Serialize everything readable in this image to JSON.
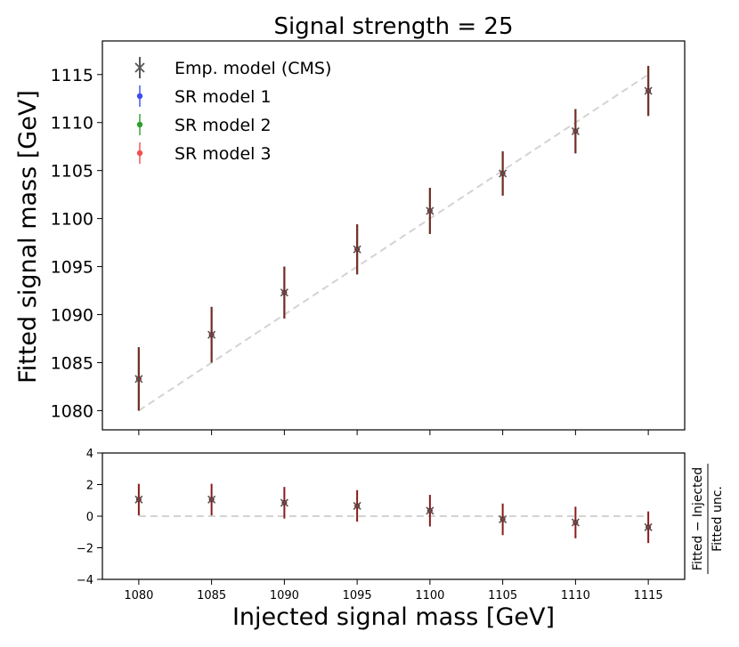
{
  "chart_data": [
    {
      "type": "scatter",
      "title": "Signal strength = 25",
      "ylabel": "Fitted signal mass [GeV]",
      "xlim": [
        1077.5,
        1117.5
      ],
      "ylim": [
        1078,
        1118.5
      ],
      "yticks": [
        1080,
        1085,
        1090,
        1095,
        1100,
        1105,
        1110,
        1115
      ],
      "legend_position": "top-left",
      "reference_line": {
        "style": "dashed",
        "color": "#d3d3d3",
        "x": [
          1080,
          1115
        ],
        "y": [
          1080,
          1115
        ]
      },
      "x": [
        1080,
        1085,
        1090,
        1095,
        1100,
        1105,
        1110,
        1115
      ],
      "series": [
        {
          "name": "Emp. model (CMS)",
          "marker": "x",
          "color": "#555555",
          "values": [
            1083.3,
            1087.9,
            1092.3,
            1096.8,
            1100.8,
            1104.7,
            1109.1,
            1113.3
          ],
          "err": [
            3.3,
            2.9,
            2.7,
            2.6,
            2.4,
            2.3,
            2.3,
            2.6
          ]
        },
        {
          "name": "SR model 1",
          "marker": "o",
          "color": "#3b4cf0",
          "values": [
            1083.3,
            1087.9,
            1092.3,
            1096.8,
            1100.8,
            1104.7,
            1109.1,
            1113.3
          ],
          "err": [
            3.3,
            2.9,
            2.7,
            2.6,
            2.4,
            2.3,
            2.3,
            2.6
          ]
        },
        {
          "name": "SR model 2",
          "marker": "o",
          "color": "#2ca02c",
          "values": [
            1083.3,
            1087.9,
            1092.3,
            1096.8,
            1100.8,
            1104.7,
            1109.1,
            1113.3
          ],
          "err": [
            3.3,
            2.9,
            2.7,
            2.6,
            2.4,
            2.3,
            2.3,
            2.6
          ]
        },
        {
          "name": "SR model 3",
          "marker": "o",
          "color": "#f05050",
          "values": [
            1083.3,
            1087.9,
            1092.3,
            1096.8,
            1100.8,
            1104.7,
            1109.1,
            1113.3
          ],
          "err": [
            3.3,
            2.9,
            2.7,
            2.6,
            2.4,
            2.3,
            2.3,
            2.6
          ]
        }
      ]
    },
    {
      "type": "scatter",
      "xlabel": "Injected signal mass [GeV]",
      "ylabel_numerator": "Fitted − Injected",
      "ylabel_denominator": "Fitted unc.",
      "xlim": [
        1077.5,
        1117.5
      ],
      "ylim": [
        -4,
        4
      ],
      "xticks": [
        1080,
        1085,
        1090,
        1095,
        1100,
        1105,
        1110,
        1115
      ],
      "yticks": [
        -4,
        -2,
        0,
        2,
        4
      ],
      "reference_line": {
        "style": "dashed",
        "color": "#d3d3d3",
        "y": 0
      },
      "x": [
        1080,
        1085,
        1090,
        1095,
        1100,
        1105,
        1110,
        1115
      ],
      "values": [
        1.05,
        1.05,
        0.85,
        0.65,
        0.35,
        -0.2,
        -0.4,
        -0.7
      ],
      "err": [
        1.0,
        1.0,
        1.0,
        1.0,
        1.0,
        1.0,
        1.0,
        1.0
      ],
      "err_color": "#8b1a1a",
      "marker_color": "#555555"
    }
  ]
}
